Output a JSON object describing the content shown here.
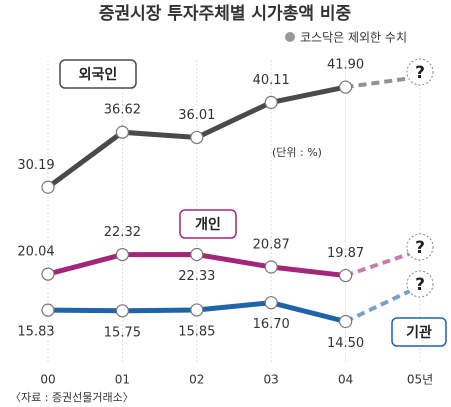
{
  "chart_data": {
    "type": "line",
    "title": "증권시장 투자주체별 시가총액 비중",
    "note": "코스닥은 제외한 수치",
    "unit_label": "(단위 : %)",
    "source": "〈자료 : 증권선물거래소〉",
    "categories": [
      "00",
      "01",
      "02",
      "03",
      "04",
      "05년"
    ],
    "ylim": [
      10,
      47.4
    ],
    "xgrid": true,
    "series": [
      {
        "name": "외국인",
        "color": "#4a4a4a",
        "values": [
          30.19,
          36.62,
          36.01,
          40.11,
          41.9,
          null
        ],
        "value_labels": [
          "30.19",
          "36.62",
          "36.01",
          "40.11",
          "41.90",
          null
        ],
        "projection_label": "?"
      },
      {
        "name": "개인",
        "color": "#a3267b",
        "values": [
          20.04,
          22.32,
          22.33,
          20.87,
          19.87,
          null
        ],
        "value_labels": [
          "20.04",
          "22.32",
          "22.33",
          "20.87",
          "19.87",
          null
        ],
        "projection_label": "?"
      },
      {
        "name": "기관",
        "color": "#1f63a8",
        "values": [
          15.83,
          15.75,
          15.85,
          16.7,
          14.5,
          null
        ],
        "value_labels": [
          "15.83",
          "15.75",
          "15.85",
          "16.70",
          "14.50",
          null
        ],
        "projection_label": "?"
      }
    ]
  }
}
